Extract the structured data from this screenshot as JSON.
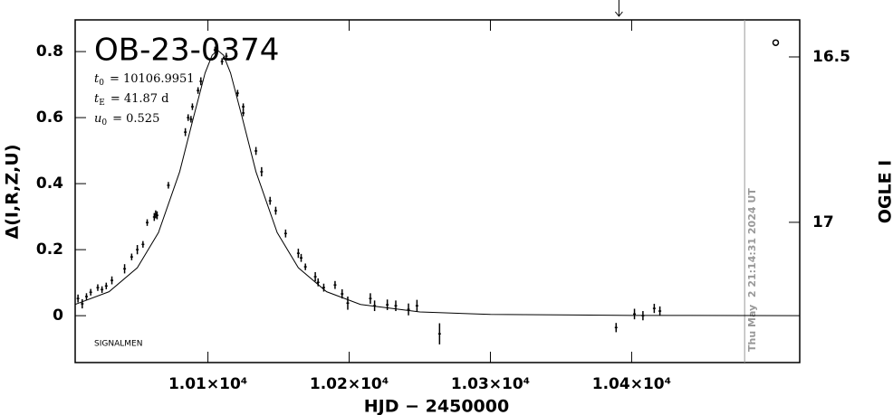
{
  "chart_data": {
    "type": "scatter",
    "title": "OB-23-0374",
    "parameters": [
      {
        "symbol": "t",
        "subscript": "0",
        "text": "= 10106.9951"
      },
      {
        "symbol": "t",
        "subscript": "E",
        "text": "= 41.87 d"
      },
      {
        "symbol": "u",
        "subscript": "0",
        "text": "= 0.525"
      }
    ],
    "xlabel": "HJD − 2450000",
    "ylabel": "Δ(I,R,Z,U)",
    "y2label": "OGLE I",
    "footer": "SIGNALMEN",
    "timestamp": "Thu May  2 21:14:31 2024 UT",
    "timestamp_x": 10480,
    "arrow_x": 10391,
    "marker": {
      "x": 10502,
      "y": 0.827
    },
    "xlim": [
      10006,
      10519
    ],
    "xticks": [
      {
        "value": 10100,
        "label": "1.01×10⁴"
      },
      {
        "value": 10200,
        "label": "1.02×10⁴"
      },
      {
        "value": 10300,
        "label": "1.03×10⁴"
      },
      {
        "value": 10400,
        "label": "1.04×10⁴"
      }
    ],
    "ylim": [
      -0.142,
      0.896
    ],
    "yticks": [
      0,
      0.2,
      0.4,
      0.6,
      0.8
    ],
    "y2lim": [
      17.424,
      16.388
    ],
    "y2ticks": [
      16.5,
      17
    ],
    "color": "#000000",
    "points": {
      "x": [
        10008,
        10011,
        10014,
        10017,
        10022,
        10025,
        10028,
        10032,
        10041,
        10046,
        10050,
        10054,
        10057,
        10062,
        10063,
        10064,
        10072,
        10084,
        10086,
        10088,
        10089,
        10093,
        10095,
        10105,
        10110,
        10113,
        10121,
        10125,
        10125,
        10134,
        10138,
        10144,
        10148,
        10155,
        10164,
        10166,
        10169,
        10176,
        10178,
        10182,
        10190,
        10195,
        10199,
        10215,
        10218,
        10227,
        10233,
        10242,
        10248,
        10264,
        10389,
        10402,
        10408,
        10416,
        10420
      ],
      "values": [
        0.052,
        0.036,
        0.058,
        0.071,
        0.085,
        0.079,
        0.09,
        0.107,
        0.142,
        0.178,
        0.2,
        0.216,
        0.282,
        0.299,
        0.307,
        0.304,
        0.395,
        0.556,
        0.6,
        0.595,
        0.633,
        0.682,
        0.71,
        0.805,
        0.77,
        0.786,
        0.674,
        0.633,
        0.614,
        0.499,
        0.436,
        0.348,
        0.318,
        0.249,
        0.189,
        0.175,
        0.148,
        0.118,
        0.101,
        0.085,
        0.093,
        0.066,
        0.038,
        0.052,
        0.03,
        0.033,
        0.03,
        0.019,
        0.03,
        -0.055,
        -0.036,
        0.005,
        0,
        0.022,
        0.014
      ],
      "errors": [
        0.012,
        0.014,
        0.01,
        0.01,
        0.01,
        0.01,
        0.01,
        0.012,
        0.014,
        0.01,
        0.014,
        0.01,
        0.01,
        0.012,
        0.012,
        0.012,
        0.01,
        0.012,
        0.01,
        0.01,
        0.01,
        0.01,
        0.012,
        0.01,
        0.01,
        0.01,
        0.01,
        0.01,
        0.01,
        0.012,
        0.014,
        0.012,
        0.012,
        0.012,
        0.014,
        0.012,
        0.01,
        0.014,
        0.012,
        0.012,
        0.012,
        0.014,
        0.02,
        0.016,
        0.016,
        0.016,
        0.016,
        0.018,
        0.018,
        0.032,
        0.014,
        0.016,
        0.014,
        0.014,
        0.014
      ]
    },
    "model": {
      "x": [
        10006,
        10030,
        10050,
        10065,
        10080,
        10090,
        10098,
        10103,
        10107,
        10111,
        10116,
        10124,
        10134,
        10149,
        10164,
        10184,
        10208,
        10250,
        10300,
        10400,
        10519
      ],
      "values": [
        0.0341,
        0.0726,
        0.1451,
        0.2521,
        0.4361,
        0.6045,
        0.7354,
        0.7891,
        0.8035,
        0.7891,
        0.7354,
        0.6045,
        0.4361,
        0.2521,
        0.1451,
        0.0726,
        0.0341,
        0.0113,
        0.0039,
        0.0009,
        0.0002
      ]
    }
  }
}
